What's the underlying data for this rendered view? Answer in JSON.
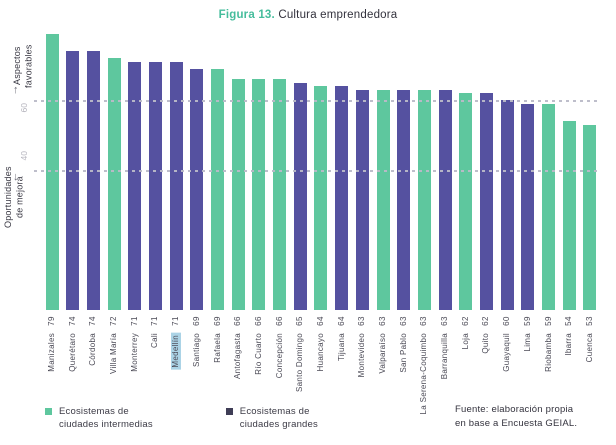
{
  "title": {
    "accent": "Figura 13.",
    "rest": " Cultura emprendedora"
  },
  "y_axis": {
    "top_label_line1": "Aspectos",
    "top_label_line2": "favorables",
    "bottom_label_line1": "Oportunidades",
    "bottom_label_line2": "de mejora",
    "tick_high": "60",
    "tick_low": "40",
    "up_arrow_icon": "↑",
    "down_arrow_icon": "↓"
  },
  "chart_data": {
    "type": "bar",
    "title": "Figura 13. Cultura emprendedora",
    "ylim": [
      0,
      80
    ],
    "gridlines": [
      60,
      40
    ],
    "grid": "dashed",
    "legend_position": "bottom",
    "highlighted_category": "Medellín",
    "series_names": [
      "Ecosistemas de ciudades intermedias",
      "Ecosistemas de ciudades grandes"
    ],
    "bars": [
      {
        "city": "Manizales",
        "value": 79,
        "group": "intermedias"
      },
      {
        "city": "Querétaro",
        "value": 74,
        "group": "grandes"
      },
      {
        "city": "Córdoba",
        "value": 74,
        "group": "grandes"
      },
      {
        "city": "Villa María",
        "value": 72,
        "group": "intermedias"
      },
      {
        "city": "Monterrey",
        "value": 71,
        "group": "grandes"
      },
      {
        "city": "Cali",
        "value": 71,
        "group": "grandes"
      },
      {
        "city": "Medellín",
        "value": 71,
        "group": "grandes"
      },
      {
        "city": "Santiago",
        "value": 69,
        "group": "grandes"
      },
      {
        "city": "Rafaela",
        "value": 69,
        "group": "intermedias"
      },
      {
        "city": "Antofagasta",
        "value": 66,
        "group": "intermedias"
      },
      {
        "city": "Río Cuarto",
        "value": 66,
        "group": "intermedias"
      },
      {
        "city": "Concepción",
        "value": 66,
        "group": "intermedias"
      },
      {
        "city": "Santo Domingo",
        "value": 65,
        "group": "grandes"
      },
      {
        "city": "Huancayo",
        "value": 64,
        "group": "intermedias"
      },
      {
        "city": "Tijuana",
        "value": 64,
        "group": "grandes"
      },
      {
        "city": "Montevideo",
        "value": 63,
        "group": "grandes"
      },
      {
        "city": "Valparaíso",
        "value": 63,
        "group": "intermedias"
      },
      {
        "city": "San Pablo",
        "value": 63,
        "group": "grandes"
      },
      {
        "city": "La Serena-Coquimbo",
        "value": 63,
        "group": "intermedias"
      },
      {
        "city": "Barranquilla",
        "value": 63,
        "group": "grandes"
      },
      {
        "city": "Loja",
        "value": 62,
        "group": "intermedias"
      },
      {
        "city": "Quito",
        "value": 62,
        "group": "grandes"
      },
      {
        "city": "Guayaquil",
        "value": 60,
        "group": "grandes"
      },
      {
        "city": "Lima",
        "value": 59,
        "group": "grandes"
      },
      {
        "city": "Riobamba",
        "value": 59,
        "group": "intermedias"
      },
      {
        "city": "Ibarra",
        "value": 54,
        "group": "intermedias"
      },
      {
        "city": "Cuenca",
        "value": 53,
        "group": "intermedias"
      }
    ]
  },
  "legend": {
    "intermedias": {
      "line1": "Ecosistemas de",
      "line2": "ciudades intermedias"
    },
    "grandes": {
      "line1": "Ecosistemas de",
      "line2": "ciudades grandes"
    }
  },
  "source": {
    "line1": "Fuente: elaboración propia",
    "line2": "en base a Encuesta GEIAL."
  },
  "colors": {
    "bar_intermedias": "#5ec79e",
    "bar_grandes": "#5551a0",
    "legend_intermedias": "#5ec79e",
    "legend_grandes": "#3f3d56",
    "accent": "#45bd9c",
    "highlight": "#abd3e6"
  }
}
